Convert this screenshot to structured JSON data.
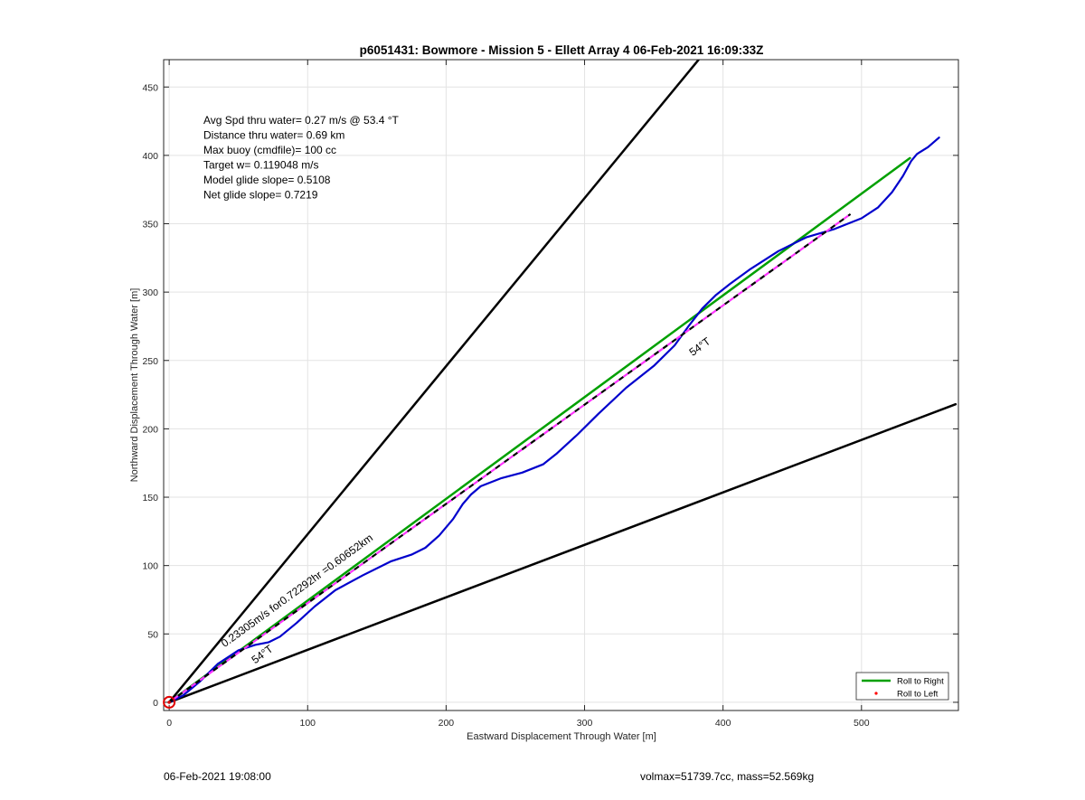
{
  "chart_data": {
    "type": "line",
    "title": "p6051431: Bowmore - Mission 5 - Ellett Array 4 06-Feb-2021 16:09:33Z",
    "xlabel": "Eastward Displacement Through Water [m]",
    "ylabel": "Northward Displacement Through Water [m]",
    "xlim": [
      -4,
      570
    ],
    "ylim": [
      -6,
      470
    ],
    "xticks": [
      0,
      100,
      200,
      300,
      400,
      500
    ],
    "yticks": [
      0,
      50,
      100,
      150,
      200,
      250,
      300,
      350,
      400,
      450
    ],
    "grid": true,
    "legend_position": "bottom-right",
    "legend": [
      {
        "label": "Roll to Right",
        "color": "#00a000",
        "style": "line"
      },
      {
        "label": "Roll to Left",
        "color": "#ff0000",
        "style": "dot"
      }
    ],
    "info_text": [
      "Avg Spd thru water=  0.27 m/s @  53.4 °T",
      "Distance thru water=  0.69 km",
      "Max buoy (cmdfile)= 100 cc",
      "Target w= 0.119048 m/s",
      "Model glide slope= 0.5108",
      "Net glide slope= 0.7219"
    ],
    "annotations": [
      {
        "text": "54°T",
        "x": 62,
        "y": 28,
        "angle": -36
      },
      {
        "text": "54°T",
        "x": 378,
        "y": 253,
        "angle": -36
      },
      {
        "text": "0.23305m/s for0.72292hr =0.60652km",
        "x": 40,
        "y": 40,
        "angle": -36
      }
    ],
    "series": [
      {
        "name": "Roll to Right",
        "color": "#00a000",
        "width": 2.5,
        "x": [
          0,
          535
        ],
        "y": [
          0,
          398
        ]
      },
      {
        "color": "#000000",
        "width": 2.5,
        "x": [
          0,
          384
        ],
        "y": [
          0,
          472
        ]
      },
      {
        "color": "#000000",
        "width": 2.5,
        "x": [
          0,
          568
        ],
        "y": [
          0,
          218
        ]
      },
      {
        "color": "#0000cc",
        "width": 2.2,
        "x": [
          0,
          10,
          22,
          35,
          50,
          62,
          72,
          80,
          92,
          105,
          120,
          140,
          160,
          175,
          185,
          195,
          205,
          212,
          218,
          225,
          240,
          255,
          270,
          280,
          295,
          310,
          330,
          350,
          365,
          375,
          385,
          395,
          405,
          420,
          440,
          460,
          480,
          500,
          512,
          522,
          530,
          536,
          540,
          548,
          556
        ],
        "y": [
          0,
          5,
          15,
          28,
          38,
          42,
          44,
          48,
          58,
          70,
          82,
          93,
          103,
          108,
          113,
          122,
          134,
          145,
          152,
          158,
          164,
          168,
          174,
          182,
          196,
          211,
          230,
          246,
          261,
          275,
          288,
          298,
          306,
          317,
          330,
          340,
          346,
          354,
          362,
          373,
          385,
          396,
          401,
          406,
          413
        ]
      },
      {
        "color": "#000000",
        "width": 2.2,
        "dashed": true,
        "x": [
          0,
          492
        ],
        "y": [
          0,
          357
        ]
      },
      {
        "color": "#ff33ff",
        "width": 2.2,
        "dashed": true,
        "dash_offset": 6,
        "x": [
          0,
          492
        ],
        "y": [
          0,
          357
        ]
      }
    ],
    "start_marker": {
      "x": 0,
      "y": 0,
      "color": "#e00000"
    }
  },
  "footer": {
    "left": "06-Feb-2021 19:08:00",
    "right": "volmax=51739.7cc, mass=52.569kg"
  }
}
